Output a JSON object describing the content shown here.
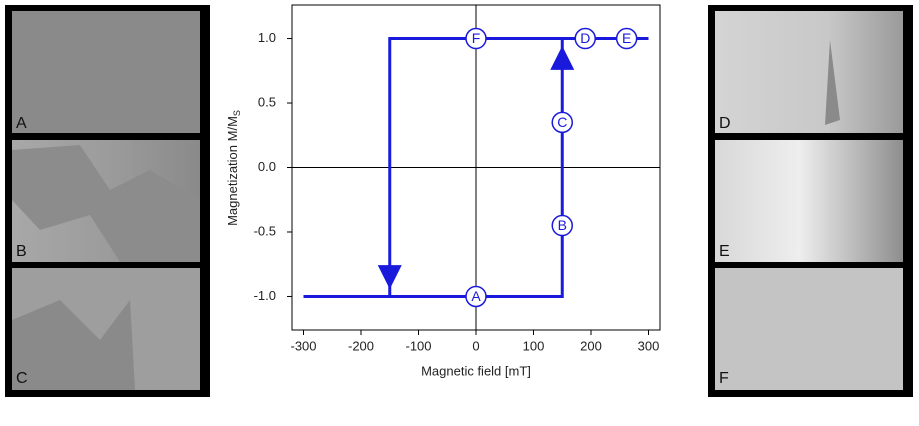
{
  "chart_data": {
    "type": "line",
    "x_label": "Magnetic field [mT]",
    "y_label": "Magnetization M/M",
    "y_label_sub": "S",
    "xlim": [
      -320,
      320
    ],
    "ylim": [
      -1.26,
      1.26
    ],
    "xticks": [
      -300,
      -200,
      -100,
      0,
      100,
      200,
      300
    ],
    "yticks": [
      {
        "value": 1.0,
        "label": "1.0"
      },
      {
        "value": 0.5,
        "label": "0.5"
      },
      {
        "value": 0.0,
        "label": "0.0"
      },
      {
        "value": -0.5,
        "label": "-0.5"
      },
      {
        "value": -1.0,
        "label": "-1.0"
      }
    ],
    "series": [
      {
        "color": "#1a1adc",
        "x": [
          -300,
          150,
          150,
          300
        ],
        "values": [
          -1,
          -1,
          1,
          1
        ]
      },
      {
        "color": "#1a1adc",
        "x": [
          150,
          -150,
          -150
        ],
        "values": [
          1,
          1,
          -1
        ]
      }
    ],
    "annotations": [
      {
        "text": "A",
        "x": 0,
        "y": -1
      },
      {
        "text": "B",
        "x": 150,
        "y": -0.45
      },
      {
        "text": "C",
        "x": 150,
        "y": 0.35
      },
      {
        "text": "D",
        "x": 190,
        "y": 1
      },
      {
        "text": "E",
        "x": 262,
        "y": 1
      },
      {
        "text": "F",
        "x": 0,
        "y": 1
      }
    ]
  },
  "panels": [
    {
      "label": "A"
    },
    {
      "label": "B"
    },
    {
      "label": "C"
    },
    {
      "label": "D"
    },
    {
      "label": "E"
    },
    {
      "label": "F"
    }
  ]
}
